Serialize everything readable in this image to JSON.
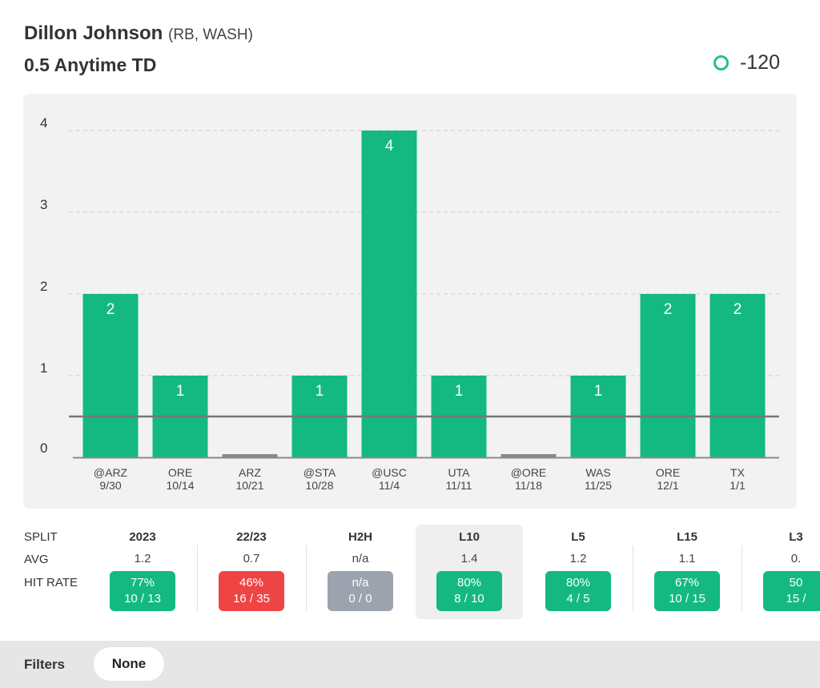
{
  "header": {
    "player_name": "Dillon Johnson",
    "player_meta": "(RB, WASH)",
    "prop": "0.5 Anytime TD",
    "odds": "-120",
    "accent_color": "#13b981"
  },
  "chart_data": {
    "type": "bar",
    "categories": [
      "@ARZ 9/30",
      "ORE 10/14",
      "ARZ 10/21",
      "@STA 10/28",
      "@USC 11/4",
      "UTA 11/11",
      "@ORE 11/18",
      "WAS 11/25",
      "ORE 12/1",
      "TX 1/1"
    ],
    "opponents": [
      "@ARZ",
      "ORE",
      "ARZ",
      "@STA",
      "@USC",
      "UTA",
      "@ORE",
      "WAS",
      "ORE",
      "TX"
    ],
    "dates": [
      "9/30",
      "10/14",
      "10/21",
      "10/28",
      "11/4",
      "11/11",
      "11/18",
      "11/25",
      "12/1",
      "1/1"
    ],
    "values": [
      2,
      1,
      0,
      1,
      4,
      1,
      0,
      1,
      2,
      2
    ],
    "value_labels": [
      "2",
      "1",
      "",
      "1",
      "4",
      "1",
      "",
      "1",
      "2",
      "2"
    ],
    "line": 0.5,
    "ylim": [
      0,
      4
    ],
    "yticks": [
      "0",
      "1",
      "2",
      "3",
      "4"
    ],
    "grid": true,
    "bar_color": "#13b981",
    "zero_color": "#8a8a8a"
  },
  "splits": {
    "row_labels": {
      "split": "SPLIT",
      "avg": "AVG",
      "hit_rate": "HIT RATE"
    },
    "columns": [
      {
        "name": "2023",
        "avg": "1.2",
        "pct": "77%",
        "record": "10 / 13",
        "status": "green",
        "selected": false
      },
      {
        "name": "22/23",
        "avg": "0.7",
        "pct": "46%",
        "record": "16 / 35",
        "status": "red",
        "selected": false
      },
      {
        "name": "H2H",
        "avg": "n/a",
        "pct": "n/a",
        "record": "0 / 0",
        "status": "gray",
        "selected": false
      },
      {
        "name": "L10",
        "avg": "1.4",
        "pct": "80%",
        "record": "8 / 10",
        "status": "green",
        "selected": true
      },
      {
        "name": "L5",
        "avg": "1.2",
        "pct": "80%",
        "record": "4 / 5",
        "status": "green",
        "selected": false
      },
      {
        "name": "L15",
        "avg": "1.1",
        "pct": "67%",
        "record": "10 / 15",
        "status": "green",
        "selected": false
      },
      {
        "name": "L3",
        "avg": "0.",
        "pct": "50",
        "record": "15 /",
        "status": "green",
        "selected": false
      }
    ]
  },
  "filters": {
    "label": "Filters",
    "value": "None"
  }
}
